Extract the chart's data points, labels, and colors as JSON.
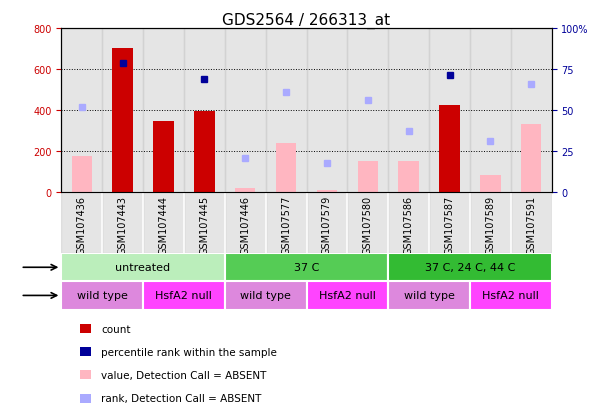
{
  "title": "GDS2564 / 266313_at",
  "samples": [
    "GSM107436",
    "GSM107443",
    "GSM107444",
    "GSM107445",
    "GSM107446",
    "GSM107577",
    "GSM107579",
    "GSM107580",
    "GSM107586",
    "GSM107587",
    "GSM107589",
    "GSM107591"
  ],
  "count_values": [
    null,
    700,
    345,
    395,
    null,
    null,
    null,
    null,
    null,
    425,
    null,
    null
  ],
  "count_absent_values": [
    175,
    null,
    null,
    null,
    20,
    240,
    10,
    150,
    150,
    null,
    80,
    330
  ],
  "rank_present_values": [
    null,
    630,
    null,
    550,
    null,
    null,
    null,
    null,
    null,
    570,
    null,
    null
  ],
  "rank_absent_values": [
    415,
    null,
    null,
    null,
    165,
    485,
    140,
    450,
    295,
    null,
    250,
    525
  ],
  "protocol_groups": [
    {
      "label": "untreated",
      "start": 0,
      "end": 4,
      "color": "#BBEEBB"
    },
    {
      "label": "37 C",
      "start": 4,
      "end": 8,
      "color": "#55CC55"
    },
    {
      "label": "37 C, 24 C, 44 C",
      "start": 8,
      "end": 12,
      "color": "#33BB33"
    }
  ],
  "genotype_groups": [
    {
      "label": "wild type",
      "start": 0,
      "end": 2,
      "color": "#DD88DD"
    },
    {
      "label": "HsfA2 null",
      "start": 2,
      "end": 4,
      "color": "#FF44FF"
    },
    {
      "label": "wild type",
      "start": 4,
      "end": 6,
      "color": "#DD88DD"
    },
    {
      "label": "HsfA2 null",
      "start": 6,
      "end": 8,
      "color": "#FF44FF"
    },
    {
      "label": "wild type",
      "start": 8,
      "end": 10,
      "color": "#DD88DD"
    },
    {
      "label": "HsfA2 null",
      "start": 10,
      "end": 12,
      "color": "#FF44FF"
    }
  ],
  "ylim_left": [
    0,
    800
  ],
  "ylim_right": [
    0,
    100
  ],
  "yticks_left": [
    0,
    200,
    400,
    600,
    800
  ],
  "yticks_right": [
    0,
    25,
    50,
    75,
    100
  ],
  "bar_width": 0.5,
  "count_color": "#CC0000",
  "count_absent_color": "#FFB6C1",
  "rank_present_color": "#000099",
  "rank_absent_color": "#AAAAFF",
  "sample_bg_color": "#CCCCCC",
  "title_fontsize": 11,
  "axis_fontsize": 7,
  "label_fontsize": 8,
  "legend_fontsize": 7.5,
  "marker_size": 5
}
